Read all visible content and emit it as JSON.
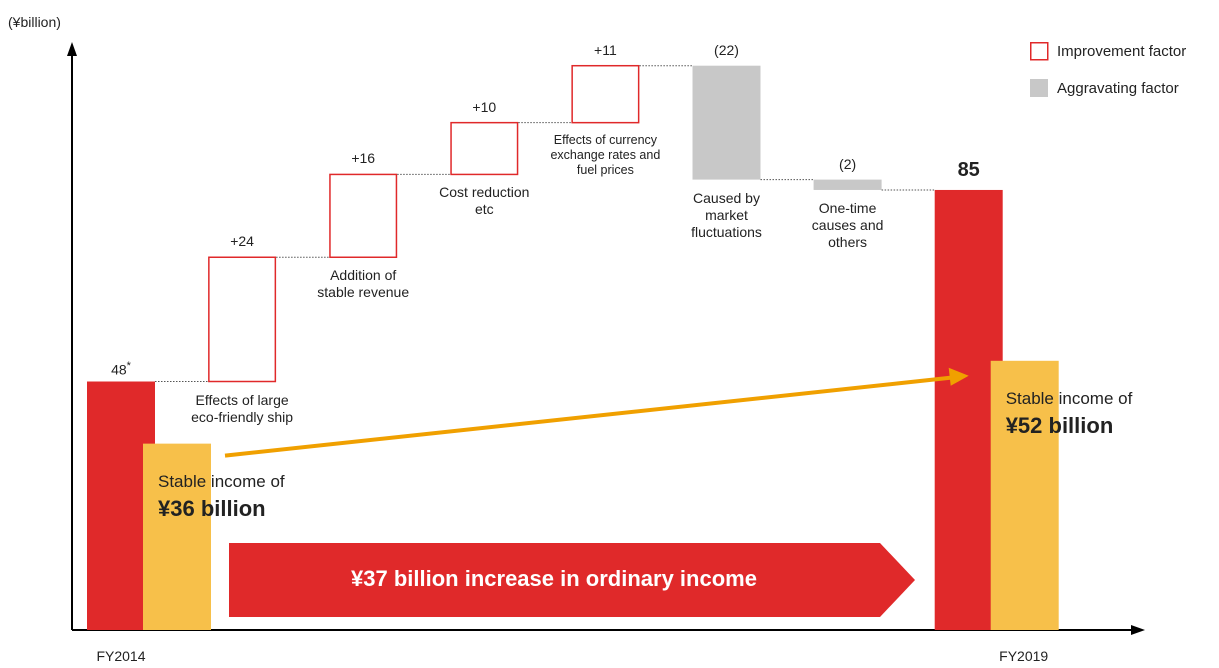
{
  "chart_data": {
    "type": "waterfall",
    "ylabel": "(¥billion)",
    "ylim": [
      0,
      113
    ],
    "categories": [
      "FY2014",
      "Effects of large\neco-friendly ship",
      "Addition of\nstable revenue",
      "Cost reduction\netc",
      "Effects of currency\nexchange rates and\nfuel prices",
      "Caused by\nmarket\nfluctuations",
      "One-time\ncauses and\nothers",
      "FY2019"
    ],
    "values": [
      48,
      24,
      16,
      10,
      11,
      -22,
      -2,
      85
    ],
    "value_labels": [
      "48",
      "+24",
      "+16",
      "+10",
      "+11",
      "(22)",
      "(2)",
      "85"
    ],
    "footnote_marker": "*",
    "total_color": "#e0292a",
    "legend": [
      {
        "name": "Improvement factor",
        "color": "#e0292a"
      },
      {
        "name": "Aggravating factor",
        "color": "#c8c8c8"
      }
    ],
    "stable_income": {
      "label": "Stable income of",
      "color": "#f7c04a",
      "values": [
        36,
        52
      ],
      "value_labels": [
        "¥36 billion",
        "¥52 billion"
      ]
    },
    "arrow_color": "#f0a000",
    "annotation": "¥37 billion increase in ordinary income"
  }
}
